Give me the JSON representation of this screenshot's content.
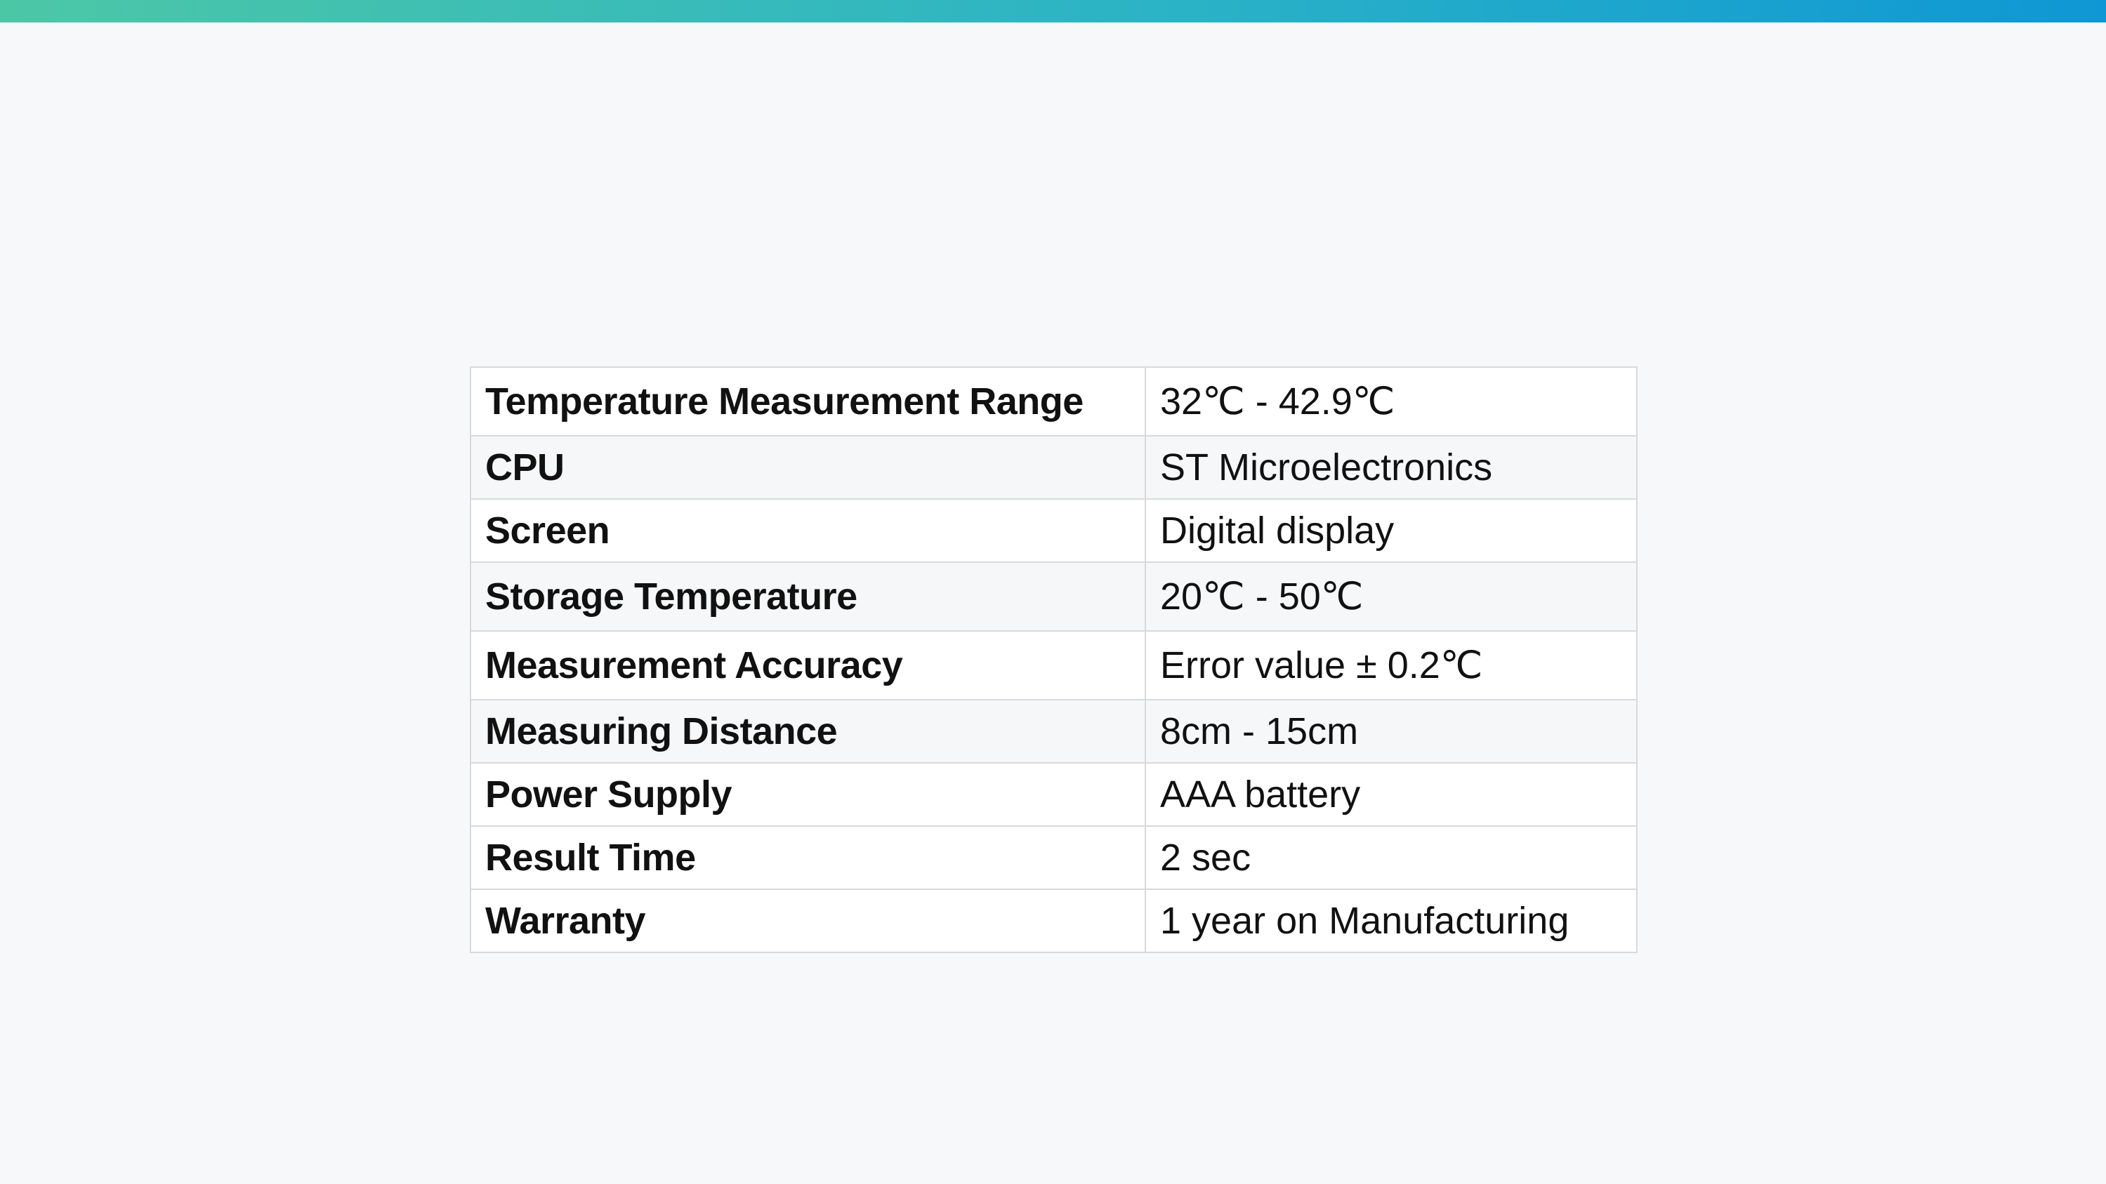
{
  "header": {
    "accent_gradient": [
      "#4cc7a6",
      "#2bb3c6",
      "#0e97d4"
    ]
  },
  "colors": {
    "background": "#f7f8fa",
    "table_border": "#d9d9d9",
    "row_alt": "#f6f7f9",
    "text": "#111111"
  },
  "specs": [
    {
      "label": "Temperature Measurement Range",
      "value": "32℃ - 42.9℃"
    },
    {
      "label": "CPU",
      "value": "ST Microelectronics"
    },
    {
      "label": "Screen",
      "value": "Digital display"
    },
    {
      "label": "Storage Temperature",
      "value": "20℃ - 50℃"
    },
    {
      "label": "Measurement Accuracy",
      "value": "Error value ± 0.2℃"
    },
    {
      "label": "Measuring Distance",
      "value": "8cm - 15cm"
    },
    {
      "label": "Power Supply",
      "value": "AAA battery"
    },
    {
      "label": "Result Time",
      "value": "2 sec"
    },
    {
      "label": "Warranty",
      "value": "1 year on Manufacturing"
    }
  ]
}
